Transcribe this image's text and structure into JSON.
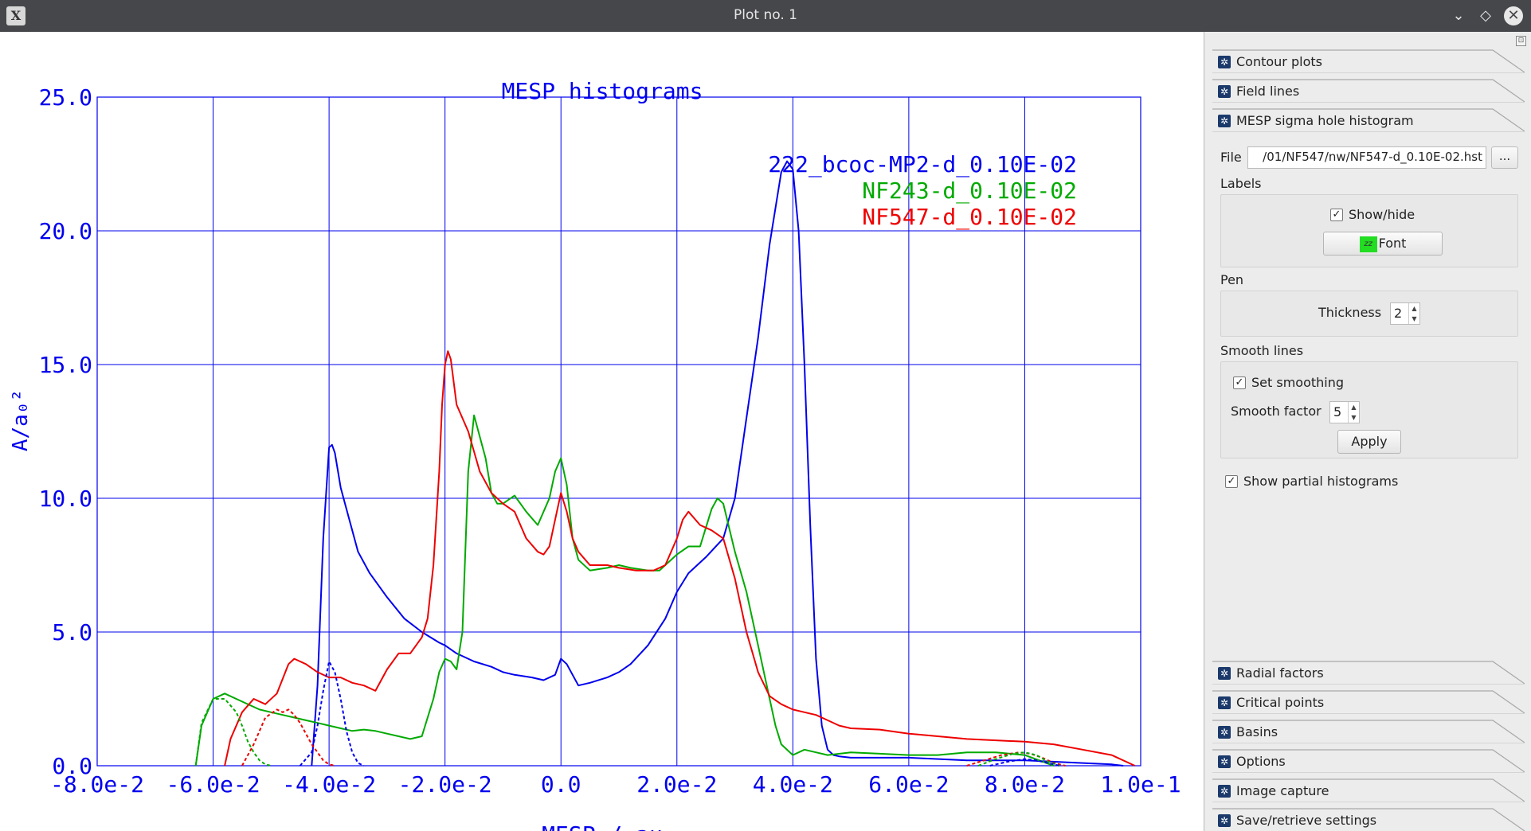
{
  "window": {
    "title": "Plot no. 1",
    "app_icon": "x-logo-icon",
    "controls": {
      "minimize": "⌄",
      "maximize": "◇",
      "close": "✕"
    }
  },
  "chart_data": {
    "type": "line",
    "title": "MESP histograms",
    "xlabel": "MESP / au",
    "ylabel": "A/a₀²",
    "xlim": [
      -0.08,
      0.1
    ],
    "ylim": [
      0,
      25
    ],
    "xticks": [
      "-8.0e-2",
      "-6.0e-2",
      "-4.0e-2",
      "-2.0e-2",
      "0.0",
      "2.0e-2",
      "4.0e-2",
      "6.0e-2",
      "8.0e-2",
      "1.0e-1"
    ],
    "yticks": [
      "0.0",
      "5.0",
      "10.0",
      "15.0",
      "20.0",
      "25.0"
    ],
    "grid": true,
    "legend_position": "top-right",
    "series": [
      {
        "name": "222_bcoc-MP2-d_0.10E-02",
        "color": "#0000ee",
        "style": "solid",
        "x": [
          -0.043,
          -0.042,
          -0.041,
          -0.04,
          -0.0395,
          -0.039,
          -0.038,
          -0.037,
          -0.035,
          -0.033,
          -0.03,
          -0.027,
          -0.024,
          -0.021,
          -0.02,
          -0.018,
          -0.015,
          -0.012,
          -0.01,
          -0.008,
          -0.005,
          -0.003,
          -0.001,
          0.0,
          0.001,
          0.003,
          0.005,
          0.008,
          0.01,
          0.012,
          0.015,
          0.018,
          0.02,
          0.022,
          0.025,
          0.028,
          0.03,
          0.032,
          0.034,
          0.036,
          0.038,
          0.039,
          0.04,
          0.041,
          0.042,
          0.043,
          0.044,
          0.045,
          0.046,
          0.047,
          0.048,
          0.05,
          0.055,
          0.06,
          0.07,
          0.08,
          0.09,
          0.095,
          0.097
        ],
        "y": [
          0.0,
          3.0,
          8.5,
          11.9,
          12.0,
          11.7,
          10.4,
          9.6,
          8.0,
          7.2,
          6.3,
          5.5,
          5.0,
          4.6,
          4.5,
          4.2,
          3.9,
          3.7,
          3.5,
          3.4,
          3.3,
          3.2,
          3.4,
          4.0,
          3.8,
          3.0,
          3.1,
          3.3,
          3.5,
          3.8,
          4.5,
          5.5,
          6.5,
          7.2,
          7.8,
          8.5,
          10.0,
          13.0,
          16.0,
          19.5,
          22.2,
          22.6,
          22.3,
          20.0,
          15.0,
          9.0,
          4.0,
          1.5,
          0.6,
          0.4,
          0.35,
          0.3,
          0.3,
          0.3,
          0.2,
          0.2,
          0.1,
          0.05,
          0.0
        ]
      },
      {
        "name": "NF243-d_0.10E-02",
        "color": "#00aa00",
        "style": "solid",
        "x": [
          -0.063,
          -0.062,
          -0.06,
          -0.058,
          -0.055,
          -0.052,
          -0.05,
          -0.048,
          -0.046,
          -0.044,
          -0.042,
          -0.04,
          -0.038,
          -0.036,
          -0.034,
          -0.032,
          -0.03,
          -0.028,
          -0.026,
          -0.024,
          -0.022,
          -0.021,
          -0.02,
          -0.019,
          -0.018,
          -0.017,
          -0.016,
          -0.015,
          -0.013,
          -0.012,
          -0.011,
          -0.01,
          -0.008,
          -0.006,
          -0.004,
          -0.002,
          -0.001,
          0.0,
          0.001,
          0.002,
          0.003,
          0.005,
          0.008,
          0.01,
          0.012,
          0.015,
          0.017,
          0.02,
          0.022,
          0.024,
          0.026,
          0.027,
          0.028,
          0.03,
          0.032,
          0.034,
          0.036,
          0.037,
          0.038,
          0.04,
          0.042,
          0.044,
          0.046,
          0.05,
          0.055,
          0.06,
          0.065,
          0.07,
          0.075,
          0.08,
          0.085
        ],
        "y": [
          0.0,
          1.5,
          2.5,
          2.7,
          2.4,
          2.1,
          2.0,
          1.9,
          1.8,
          1.7,
          1.6,
          1.5,
          1.4,
          1.3,
          1.35,
          1.3,
          1.2,
          1.1,
          1.0,
          1.1,
          2.5,
          3.5,
          4.0,
          3.9,
          3.6,
          5.0,
          11.0,
          13.1,
          11.5,
          10.2,
          9.8,
          9.8,
          10.1,
          9.5,
          9.0,
          10.0,
          11.0,
          11.5,
          10.5,
          8.5,
          7.7,
          7.3,
          7.4,
          7.5,
          7.4,
          7.3,
          7.3,
          7.9,
          8.2,
          8.2,
          9.6,
          10.0,
          9.8,
          8.0,
          6.5,
          4.5,
          2.5,
          1.5,
          0.8,
          0.4,
          0.6,
          0.5,
          0.4,
          0.5,
          0.45,
          0.4,
          0.4,
          0.5,
          0.5,
          0.4,
          0.0
        ]
      },
      {
        "name": "NF547-d_0.10E-02",
        "color": "#ee0000",
        "style": "solid",
        "x": [
          -0.058,
          -0.057,
          -0.055,
          -0.053,
          -0.051,
          -0.049,
          -0.047,
          -0.046,
          -0.044,
          -0.042,
          -0.04,
          -0.038,
          -0.036,
          -0.034,
          -0.032,
          -0.03,
          -0.028,
          -0.026,
          -0.024,
          -0.023,
          -0.022,
          -0.021,
          -0.0205,
          -0.02,
          -0.0195,
          -0.019,
          -0.018,
          -0.016,
          -0.014,
          -0.012,
          -0.01,
          -0.008,
          -0.006,
          -0.004,
          -0.003,
          -0.002,
          -0.001,
          0.0,
          0.001,
          0.002,
          0.003,
          0.005,
          0.008,
          0.01,
          0.013,
          0.016,
          0.018,
          0.02,
          0.021,
          0.022,
          0.024,
          0.026,
          0.028,
          0.03,
          0.032,
          0.034,
          0.036,
          0.038,
          0.04,
          0.042,
          0.044,
          0.046,
          0.048,
          0.05,
          0.055,
          0.06,
          0.065,
          0.07,
          0.075,
          0.08,
          0.085,
          0.09,
          0.095,
          0.099
        ],
        "y": [
          0.0,
          1.0,
          2.0,
          2.5,
          2.3,
          2.7,
          3.8,
          4.0,
          3.8,
          3.5,
          3.3,
          3.3,
          3.1,
          3.0,
          2.8,
          3.6,
          4.2,
          4.2,
          4.8,
          5.5,
          7.5,
          11.0,
          13.5,
          15.0,
          15.5,
          15.2,
          13.5,
          12.5,
          11.0,
          10.2,
          9.8,
          9.5,
          8.5,
          8.0,
          7.9,
          8.2,
          9.2,
          10.2,
          9.5,
          8.5,
          8.0,
          7.5,
          7.5,
          7.4,
          7.3,
          7.3,
          7.5,
          8.5,
          9.2,
          9.5,
          9.0,
          8.8,
          8.5,
          7.0,
          5.0,
          3.5,
          2.6,
          2.3,
          2.1,
          2.0,
          1.9,
          1.7,
          1.5,
          1.4,
          1.35,
          1.2,
          1.1,
          1.0,
          0.95,
          0.9,
          0.8,
          0.6,
          0.4,
          0.0
        ]
      },
      {
        "color": "#0000ee",
        "style": "dashed",
        "x": [
          -0.045,
          -0.043,
          -0.042,
          -0.041,
          -0.04,
          -0.039,
          -0.038,
          -0.037,
          -0.036,
          -0.035,
          -0.034
        ],
        "y": [
          0.0,
          0.5,
          1.5,
          2.8,
          3.9,
          3.5,
          2.5,
          1.3,
          0.5,
          0.1,
          0.0
        ]
      },
      {
        "color": "#00aa00",
        "style": "dashed",
        "x": [
          -0.063,
          -0.062,
          -0.06,
          -0.058,
          -0.056,
          -0.055,
          -0.054,
          -0.053,
          -0.052,
          -0.051,
          -0.05
        ],
        "y": [
          0.0,
          1.6,
          2.5,
          2.5,
          2.0,
          1.5,
          0.9,
          0.5,
          0.2,
          0.05,
          0.0
        ]
      },
      {
        "color": "#ee0000",
        "style": "dashed",
        "x": [
          -0.055,
          -0.053,
          -0.051,
          -0.049,
          -0.048,
          -0.047,
          -0.046,
          -0.045,
          -0.044,
          -0.043,
          -0.042,
          -0.041,
          -0.04,
          -0.039
        ],
        "y": [
          0.0,
          0.8,
          1.8,
          2.1,
          2.0,
          2.1,
          1.9,
          1.6,
          1.2,
          0.8,
          0.5,
          0.2,
          0.05,
          0.0
        ]
      },
      {
        "color": "#ee0000",
        "style": "dashed",
        "x": [
          0.07,
          0.073,
          0.076,
          0.079,
          0.081,
          0.083,
          0.085,
          0.087
        ],
        "y": [
          0.0,
          0.2,
          0.4,
          0.5,
          0.45,
          0.3,
          0.1,
          0.0
        ]
      },
      {
        "color": "#00aa00",
        "style": "dashed",
        "x": [
          0.072,
          0.075,
          0.078,
          0.08,
          0.082,
          0.084,
          0.086
        ],
        "y": [
          0.0,
          0.25,
          0.45,
          0.5,
          0.4,
          0.15,
          0.0
        ]
      },
      {
        "color": "#0000ee",
        "style": "dashed",
        "x": [
          0.074,
          0.077,
          0.08,
          0.082,
          0.084,
          0.086
        ],
        "y": [
          0.0,
          0.15,
          0.25,
          0.2,
          0.1,
          0.0
        ]
      }
    ]
  },
  "panel": {
    "float_button": "⊡",
    "sections_top": [
      {
        "label": "Contour plots",
        "icon": "gear-icon"
      },
      {
        "label": "Field lines",
        "icon": "gear-icon"
      },
      {
        "label": "MESP sigma hole histogram",
        "icon": "gear-icon"
      }
    ],
    "histogram": {
      "file_label": "File",
      "file_value": "/01/NF547/nw/NF547-d_0.10E-02.hst",
      "browse_label": "...",
      "labels_title": "Labels",
      "show_hide_label": "Show/hide",
      "show_hide_checked": true,
      "font_button_label": "Font",
      "font_swatch_text": "zz",
      "pen_title": "Pen",
      "thickness_label": "Thickness",
      "thickness_value": "2",
      "smooth_title": "Smooth lines",
      "set_smoothing_label": "Set smoothing",
      "set_smoothing_checked": true,
      "smooth_factor_label": "Smooth factor",
      "smooth_factor_value": "5",
      "apply_label": "Apply",
      "show_partial_label": "Show partial histograms",
      "show_partial_checked": true
    },
    "sections_bottom": [
      {
        "label": "Radial factors",
        "icon": "gear-icon"
      },
      {
        "label": "Critical points",
        "icon": "gear-icon"
      },
      {
        "label": "Basins",
        "icon": "gear-icon"
      },
      {
        "label": "Options",
        "icon": "gear-icon"
      },
      {
        "label": "Image capture",
        "icon": "gear-icon"
      },
      {
        "label": "Save/retrieve settings",
        "icon": "gear-icon"
      }
    ]
  }
}
